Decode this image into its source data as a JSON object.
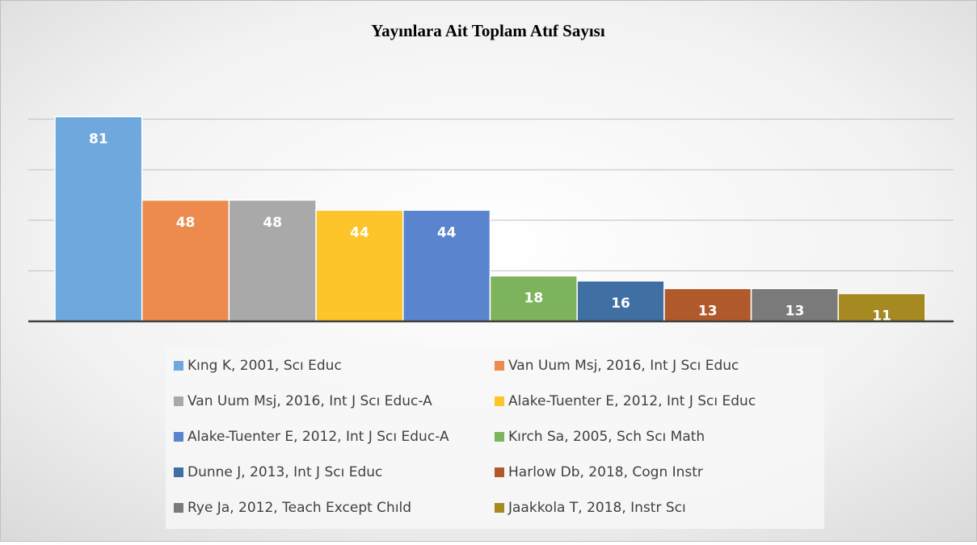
{
  "chart_data": {
    "type": "bar",
    "title": "Yayınlara Ait Toplam Atıf Sayısı",
    "categories": [
      "Kıng K, 2001, Scı Educ",
      "Van Uum Msj, 2016, Int J Scı Educ",
      "Van Uum Msj, 2016, Int J Scı Educ-A",
      "Alake-Tuenter E, 2012, Int J Scı Educ",
      "Alake-Tuenter E, 2012, Int J Scı Educ-A",
      "Kırch Sa, 2005, Sch Scı Math",
      "Dunne J, 2013, Int J Scı Educ",
      "Harlow Db, 2018, Cogn Instr",
      "Rye Ja, 2012, Teach Except Chıld",
      "Jaakkola T, 2018, Instr Scı"
    ],
    "values": [
      81,
      48,
      48,
      44,
      44,
      18,
      16,
      13,
      13,
      11
    ],
    "colors": [
      "#6fa8dc",
      "#ed8b4f",
      "#a9a9a9",
      "#fdc52a",
      "#5b84cf",
      "#7db35a",
      "#3f6fa3",
      "#b05a2c",
      "#7a7a7a",
      "#a68920"
    ],
    "ylim": [
      0,
      100
    ],
    "yticks": [
      0,
      20,
      40,
      60,
      80
    ],
    "grid": true,
    "legend": "bottom"
  }
}
